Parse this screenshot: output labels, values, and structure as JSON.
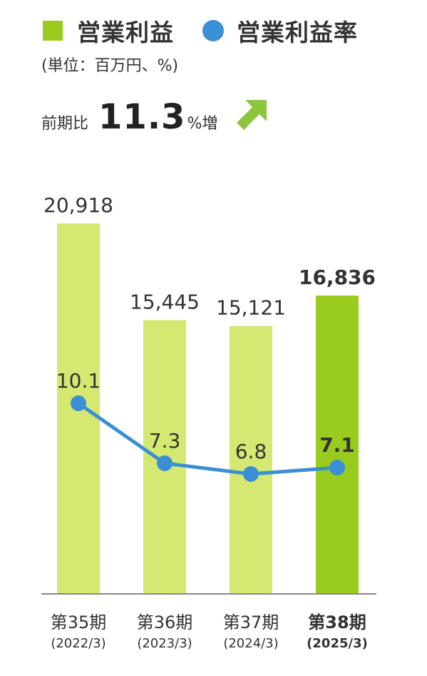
{
  "legend": {
    "bar_label": "営業利益",
    "line_label": "営業利益率"
  },
  "unit_note": "(単位：百万円、%)",
  "change": {
    "prefix": "前期比",
    "value": "11.3",
    "suffix": "%増",
    "direction": "up",
    "arrow_icon": "arrow-up-right-icon"
  },
  "colors": {
    "bar": "#d4e872",
    "bar_highlight": "#99cc1f",
    "line": "#3b8fd4",
    "axis": "#888888",
    "text": "#333333",
    "arrow": "#8cc63f"
  },
  "chart_data": {
    "type": "bar",
    "categories": [
      {
        "period": "第35期",
        "date": "(2022/3)"
      },
      {
        "period": "第36期",
        "date": "(2023/3)"
      },
      {
        "period": "第37期",
        "date": "(2024/3)"
      },
      {
        "period": "第38期",
        "date": "(2025/3)"
      }
    ],
    "series": [
      {
        "name": "営業利益",
        "type": "bar",
        "values": [
          20918,
          15445,
          15121,
          16836
        ],
        "labels": [
          "20,918",
          "15,445",
          "15,121",
          "16,836"
        ],
        "highlight_index": 3
      },
      {
        "name": "営業利益率",
        "type": "line",
        "values": [
          10.1,
          7.3,
          6.8,
          7.1
        ],
        "labels": [
          "10.1",
          "7.3",
          "6.8",
          "7.1"
        ]
      }
    ],
    "grid": false,
    "legend_position": "top-left"
  }
}
